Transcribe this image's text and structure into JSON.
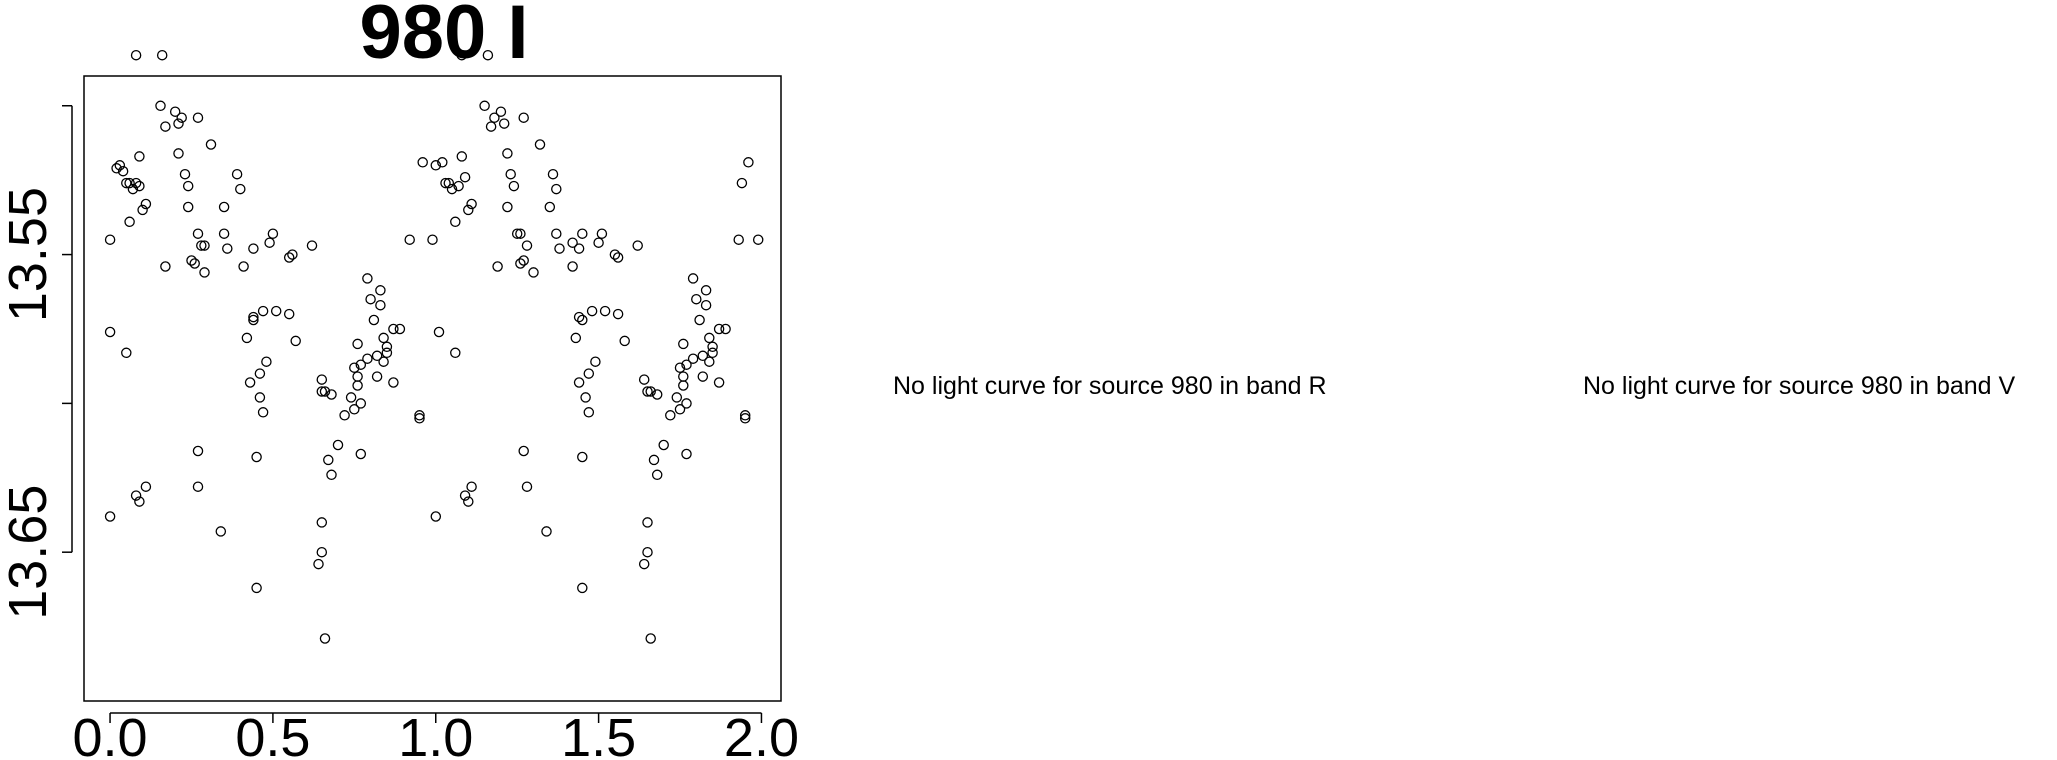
{
  "chart_data": {
    "type": "scatter",
    "title": "980 I",
    "xlabel": "",
    "ylabel": "",
    "xlim": [
      -0.08,
      2.06
    ],
    "ylim": [
      13.7,
      13.49
    ],
    "y_inverted": true,
    "x_ticks": [
      0.0,
      0.5,
      1.0,
      1.5,
      2.0
    ],
    "x_tick_labels": [
      "0.0",
      "0.5",
      "1.0",
      "1.5",
      "2.0"
    ],
    "y_ticks": [
      13.5,
      13.55,
      13.6,
      13.65
    ],
    "y_tick_labels": [
      "",
      "13.55",
      "",
      "13.65"
    ],
    "grid": false,
    "legend": "none",
    "marker": "open-circle",
    "points": [
      [
        0.08,
        13.483
      ],
      [
        0.16,
        13.483
      ],
      [
        1.08,
        13.483
      ],
      [
        1.16,
        13.483
      ],
      [
        0.155,
        13.5
      ],
      [
        0.2,
        13.502
      ],
      [
        0.22,
        13.504
      ],
      [
        0.27,
        13.504
      ],
      [
        0.21,
        13.506
      ],
      [
        0.17,
        13.507
      ],
      [
        0.31,
        13.513
      ],
      [
        0.21,
        13.516
      ],
      [
        0.09,
        13.517
      ],
      [
        0.02,
        13.521
      ],
      [
        0.03,
        13.52
      ],
      [
        0.04,
        13.522
      ],
      [
        0.23,
        13.523
      ],
      [
        0.05,
        13.526
      ],
      [
        0.06,
        13.526
      ],
      [
        0.08,
        13.526
      ],
      [
        0.09,
        13.527
      ],
      [
        0.07,
        13.528
      ],
      [
        0.24,
        13.527
      ],
      [
        0.39,
        13.523
      ],
      [
        0.4,
        13.528
      ],
      [
        0.35,
        13.534
      ],
      [
        0.11,
        13.533
      ],
      [
        0.1,
        13.535
      ],
      [
        0.24,
        13.534
      ],
      [
        0.06,
        13.539
      ],
      [
        0.0,
        13.545
      ],
      [
        0.27,
        13.543
      ],
      [
        0.28,
        13.547
      ],
      [
        0.29,
        13.547
      ],
      [
        0.35,
        13.543
      ],
      [
        0.36,
        13.548
      ],
      [
        0.5,
        13.543
      ],
      [
        0.49,
        13.546
      ],
      [
        0.55,
        13.551
      ],
      [
        0.56,
        13.55
      ],
      [
        0.62,
        13.547
      ],
      [
        0.44,
        13.548
      ],
      [
        0.25,
        13.552
      ],
      [
        0.26,
        13.553
      ],
      [
        0.17,
        13.554
      ],
      [
        0.29,
        13.556
      ],
      [
        0.41,
        13.554
      ],
      [
        0.0,
        13.576
      ],
      [
        0.05,
        13.583
      ],
      [
        0.44,
        13.571
      ],
      [
        0.44,
        13.572
      ],
      [
        0.47,
        13.569
      ],
      [
        0.51,
        13.569
      ],
      [
        0.55,
        13.57
      ],
      [
        0.42,
        13.578
      ],
      [
        0.48,
        13.586
      ],
      [
        0.43,
        13.593
      ],
      [
        0.46,
        13.59
      ],
      [
        0.57,
        13.579
      ],
      [
        0.65,
        13.592
      ],
      [
        0.46,
        13.598
      ],
      [
        0.47,
        13.603
      ],
      [
        0.65,
        13.596
      ],
      [
        0.66,
        13.596
      ],
      [
        0.68,
        13.597
      ],
      [
        0.72,
        13.604
      ],
      [
        0.74,
        13.598
      ],
      [
        0.75,
        13.602
      ],
      [
        0.77,
        13.6
      ],
      [
        0.79,
        13.558
      ],
      [
        0.8,
        13.565
      ],
      [
        0.83,
        13.562
      ],
      [
        0.83,
        13.567
      ],
      [
        0.81,
        13.572
      ],
      [
        0.84,
        13.578
      ],
      [
        0.87,
        13.575
      ],
      [
        0.89,
        13.575
      ],
      [
        0.76,
        13.58
      ],
      [
        0.79,
        13.585
      ],
      [
        0.75,
        13.588
      ],
      [
        0.76,
        13.591
      ],
      [
        0.82,
        13.584
      ],
      [
        0.85,
        13.583
      ],
      [
        0.82,
        13.591
      ],
      [
        0.85,
        13.581
      ],
      [
        0.87,
        13.593
      ],
      [
        0.76,
        13.594
      ],
      [
        0.77,
        13.587
      ],
      [
        0.84,
        13.586
      ],
      [
        0.95,
        13.604
      ],
      [
        0.95,
        13.605
      ],
      [
        0.27,
        13.616
      ],
      [
        0.45,
        13.618
      ],
      [
        0.7,
        13.614
      ],
      [
        0.77,
        13.617
      ],
      [
        0.67,
        13.619
      ],
      [
        0.27,
        13.628
      ],
      [
        0.08,
        13.631
      ],
      [
        0.11,
        13.628
      ],
      [
        0.09,
        13.633
      ],
      [
        0.34,
        13.643
      ],
      [
        0.0,
        13.638
      ],
      [
        0.68,
        13.624
      ],
      [
        0.65,
        13.64
      ],
      [
        0.65,
        13.65
      ],
      [
        0.64,
        13.654
      ],
      [
        0.45,
        13.662
      ],
      [
        0.66,
        13.679
      ],
      [
        0.92,
        13.545
      ],
      [
        0.96,
        13.519
      ],
      [
        0.99,
        13.545
      ],
      [
        1.0,
        13.52
      ],
      [
        1.02,
        13.519
      ],
      [
        1.03,
        13.526
      ],
      [
        1.04,
        13.526
      ],
      [
        1.05,
        13.528
      ],
      [
        1.07,
        13.527
      ],
      [
        1.08,
        13.517
      ],
      [
        1.06,
        13.539
      ],
      [
        1.09,
        13.524
      ],
      [
        1.11,
        13.533
      ],
      [
        1.1,
        13.535
      ],
      [
        1.15,
        13.5
      ],
      [
        1.18,
        13.504
      ],
      [
        1.2,
        13.502
      ],
      [
        1.21,
        13.506
      ],
      [
        1.17,
        13.507
      ],
      [
        1.22,
        13.516
      ],
      [
        1.23,
        13.523
      ],
      [
        1.24,
        13.527
      ],
      [
        1.27,
        13.504
      ],
      [
        1.32,
        13.513
      ],
      [
        1.22,
        13.534
      ],
      [
        1.25,
        13.543
      ],
      [
        1.26,
        13.543
      ],
      [
        1.28,
        13.547
      ],
      [
        1.27,
        13.552
      ],
      [
        1.26,
        13.553
      ],
      [
        1.19,
        13.554
      ],
      [
        1.3,
        13.556
      ],
      [
        1.36,
        13.523
      ],
      [
        1.37,
        13.528
      ],
      [
        1.35,
        13.534
      ],
      [
        1.37,
        13.543
      ],
      [
        1.38,
        13.548
      ],
      [
        1.42,
        13.546
      ],
      [
        1.45,
        13.543
      ],
      [
        1.51,
        13.543
      ],
      [
        1.5,
        13.546
      ],
      [
        1.56,
        13.551
      ],
      [
        1.55,
        13.55
      ],
      [
        1.62,
        13.547
      ],
      [
        1.44,
        13.548
      ],
      [
        1.42,
        13.554
      ],
      [
        1.01,
        13.576
      ],
      [
        1.06,
        13.583
      ],
      [
        1.44,
        13.571
      ],
      [
        1.45,
        13.572
      ],
      [
        1.48,
        13.569
      ],
      [
        1.52,
        13.569
      ],
      [
        1.56,
        13.57
      ],
      [
        1.43,
        13.578
      ],
      [
        1.49,
        13.586
      ],
      [
        1.44,
        13.593
      ],
      [
        1.47,
        13.59
      ],
      [
        1.58,
        13.579
      ],
      [
        1.64,
        13.592
      ],
      [
        1.46,
        13.598
      ],
      [
        1.47,
        13.603
      ],
      [
        1.65,
        13.596
      ],
      [
        1.66,
        13.596
      ],
      [
        1.68,
        13.597
      ],
      [
        1.72,
        13.604
      ],
      [
        1.74,
        13.598
      ],
      [
        1.75,
        13.602
      ],
      [
        1.77,
        13.6
      ],
      [
        1.79,
        13.558
      ],
      [
        1.8,
        13.565
      ],
      [
        1.83,
        13.562
      ],
      [
        1.83,
        13.567
      ],
      [
        1.81,
        13.572
      ],
      [
        1.84,
        13.578
      ],
      [
        1.87,
        13.575
      ],
      [
        1.89,
        13.575
      ],
      [
        1.76,
        13.58
      ],
      [
        1.79,
        13.585
      ],
      [
        1.75,
        13.588
      ],
      [
        1.76,
        13.591
      ],
      [
        1.82,
        13.584
      ],
      [
        1.85,
        13.583
      ],
      [
        1.82,
        13.591
      ],
      [
        1.85,
        13.581
      ],
      [
        1.87,
        13.593
      ],
      [
        1.76,
        13.594
      ],
      [
        1.77,
        13.587
      ],
      [
        1.84,
        13.586
      ],
      [
        1.95,
        13.604
      ],
      [
        1.95,
        13.605
      ],
      [
        1.93,
        13.545
      ],
      [
        1.96,
        13.519
      ],
      [
        1.99,
        13.545
      ],
      [
        1.94,
        13.526
      ],
      [
        1.27,
        13.616
      ],
      [
        1.45,
        13.618
      ],
      [
        1.7,
        13.614
      ],
      [
        1.77,
        13.617
      ],
      [
        1.67,
        13.619
      ],
      [
        1.28,
        13.628
      ],
      [
        1.09,
        13.631
      ],
      [
        1.11,
        13.628
      ],
      [
        1.1,
        13.633
      ],
      [
        1.34,
        13.643
      ],
      [
        1.0,
        13.638
      ],
      [
        1.68,
        13.624
      ],
      [
        1.65,
        13.64
      ],
      [
        1.65,
        13.65
      ],
      [
        1.64,
        13.654
      ],
      [
        1.45,
        13.662
      ],
      [
        1.66,
        13.679
      ]
    ]
  },
  "messages": {
    "band_r": "No light curve for source 980 in band R",
    "band_v": "No light curve for source 980 in band V"
  }
}
